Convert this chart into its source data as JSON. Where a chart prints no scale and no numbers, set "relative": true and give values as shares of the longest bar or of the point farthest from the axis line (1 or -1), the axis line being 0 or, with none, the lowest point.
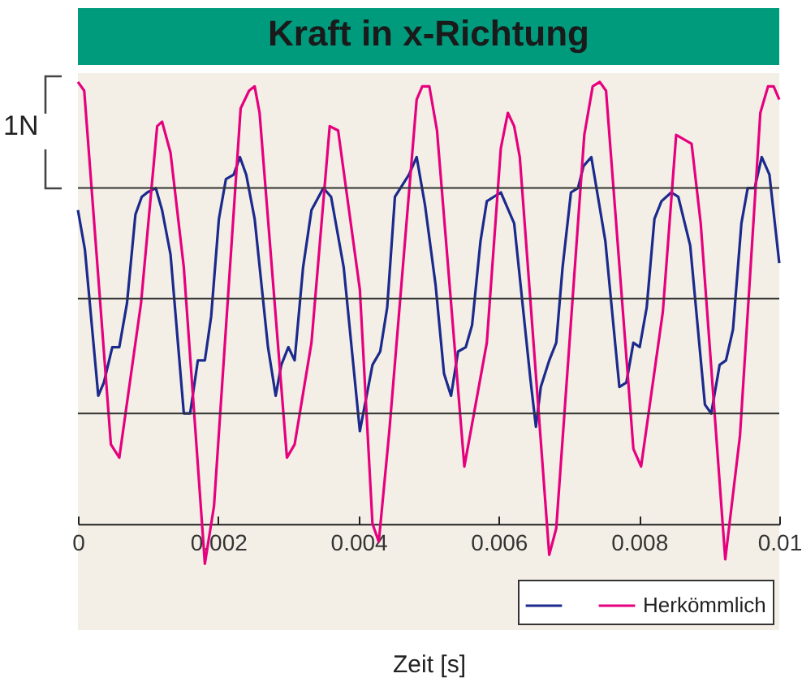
{
  "chart_data": {
    "type": "line",
    "title": "Kraft in x-Richtung",
    "xlabel": "Zeit [s]",
    "relative": true,
    "xlim": [
      0,
      0.01
    ],
    "xticks": [
      0,
      0.002,
      0.004,
      0.006,
      0.008,
      0.01
    ],
    "legend": "bottom right",
    "annotations": [
      "1N"
    ],
    "ref_lines": [
      {
        "axis": "y",
        "value": 0.25,
        "color": "#333333"
      },
      {
        "axis": "y",
        "value": 0.51,
        "color": "#333333"
      },
      {
        "axis": "y",
        "value": 0.76,
        "color": "#333333"
      }
    ],
    "series": [
      {
        "color": "#1b2a8c",
        "x": [
          0,
          0.0001,
          0.00029,
          0.00037,
          0.00049,
          0.00059,
          0.0007,
          0.00082,
          0.00091,
          0.00099,
          0.00111,
          0.0012,
          0.00132,
          0.00151,
          0.0016,
          0.00171,
          0.00181,
          0.0019,
          0.00201,
          0.00211,
          0.00222,
          0.00231,
          0.0024,
          0.00252,
          0.00271,
          0.00282,
          0.0029,
          0.003,
          0.00309,
          0.00321,
          0.00333,
          0.0035,
          0.00361,
          0.00379,
          0.00402,
          0.0042,
          0.00431,
          0.00441,
          0.00452,
          0.00472,
          0.00483,
          0.00495,
          0.0051,
          0.00522,
          0.00532,
          0.00542,
          0.00553,
          0.00562,
          0.00574,
          0.00583,
          0.00603,
          0.00622,
          0.00645,
          0.00653,
          0.0066,
          0.00672,
          0.00682,
          0.00691,
          0.00703,
          0.00713,
          0.00721,
          0.00732,
          0.00752,
          0.00772,
          0.00782,
          0.00792,
          0.00801,
          0.00811,
          0.00822,
          0.00832,
          0.00846,
          0.00856,
          0.00873,
          0.00894,
          0.00903,
          0.00915,
          0.00924,
          0.00934,
          0.00946,
          0.00955,
          0.00965,
          0.00975,
          0.00986,
          0.01
        ],
        "values": [
          0.71,
          0.62,
          0.29,
          0.32,
          0.4,
          0.4,
          0.5,
          0.7,
          0.74,
          0.75,
          0.76,
          0.71,
          0.61,
          0.25,
          0.25,
          0.37,
          0.37,
          0.47,
          0.69,
          0.78,
          0.79,
          0.83,
          0.79,
          0.69,
          0.4,
          0.29,
          0.36,
          0.4,
          0.37,
          0.58,
          0.71,
          0.76,
          0.74,
          0.58,
          0.21,
          0.36,
          0.39,
          0.49,
          0.74,
          0.79,
          0.83,
          0.72,
          0.54,
          0.34,
          0.29,
          0.39,
          0.4,
          0.45,
          0.64,
          0.73,
          0.75,
          0.68,
          0.33,
          0.22,
          0.31,
          0.37,
          0.41,
          0.58,
          0.75,
          0.76,
          0.81,
          0.83,
          0.64,
          0.31,
          0.32,
          0.41,
          0.4,
          0.49,
          0.69,
          0.73,
          0.75,
          0.74,
          0.63,
          0.27,
          0.25,
          0.36,
          0.37,
          0.44,
          0.68,
          0.76,
          0.76,
          0.83,
          0.79,
          0.59
        ]
      },
      {
        "name": "Herkömmlich",
        "color": "#e6007e",
        "x": [
          0,
          9e-05,
          0.00047,
          0.00059,
          0.0009,
          0.00113,
          0.0012,
          0.00132,
          0.00151,
          0.00181,
          0.00194,
          0.00232,
          0.00244,
          0.00252,
          0.00259,
          0.00298,
          0.00309,
          0.00333,
          0.00359,
          0.00371,
          0.00402,
          0.0042,
          0.00429,
          0.00444,
          0.00483,
          0.00491,
          0.00501,
          0.00512,
          0.00551,
          0.00583,
          0.00603,
          0.00613,
          0.00622,
          0.0063,
          0.00672,
          0.00682,
          0.00722,
          0.00734,
          0.00744,
          0.00753,
          0.00792,
          0.00803,
          0.00834,
          0.00853,
          0.00875,
          0.00888,
          0.00923,
          0.00944,
          0.00973,
          0.00984,
          0.00992,
          0.01
        ],
        "values": [
          1.0,
          0.98,
          0.18,
          0.15,
          0.5,
          0.9,
          0.91,
          0.84,
          0.58,
          -0.09,
          0.04,
          0.94,
          0.98,
          0.99,
          0.93,
          0.15,
          0.18,
          0.41,
          0.9,
          0.89,
          0.53,
          0.0,
          -0.04,
          0.21,
          0.96,
          0.99,
          0.99,
          0.89,
          0.13,
          0.41,
          0.85,
          0.93,
          0.9,
          0.83,
          -0.07,
          -0.01,
          0.88,
          0.99,
          1.0,
          0.98,
          0.17,
          0.13,
          0.48,
          0.88,
          0.86,
          0.68,
          -0.08,
          0.2,
          0.93,
          0.99,
          0.99,
          0.96
        ]
      }
    ]
  }
}
